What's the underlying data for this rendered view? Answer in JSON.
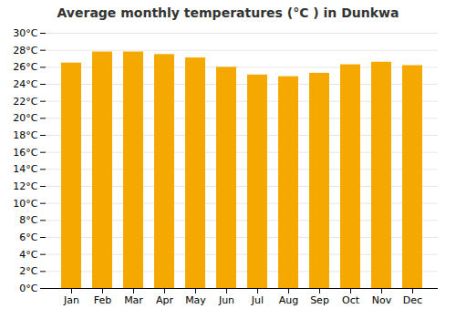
{
  "chart_data": {
    "type": "bar",
    "title": "Average monthly temperatures (°C ) in Dunkwa",
    "categories": [
      "Jan",
      "Feb",
      "Mar",
      "Apr",
      "May",
      "Jun",
      "Jul",
      "Aug",
      "Sep",
      "Oct",
      "Nov",
      "Dec"
    ],
    "values": [
      26.5,
      27.8,
      27.8,
      27.5,
      27.1,
      26.0,
      25.1,
      24.9,
      25.3,
      26.3,
      26.6,
      26.2
    ],
    "color": "#F5A800",
    "ylim": [
      0,
      30
    ],
    "yticks": [
      {
        "value": 0,
        "label": "0°C"
      },
      {
        "value": 2,
        "label": "2°C"
      },
      {
        "value": 4,
        "label": "4°C"
      },
      {
        "value": 6,
        "label": "6°C"
      },
      {
        "value": 8,
        "label": "8°C"
      },
      {
        "value": 10,
        "label": "10°C"
      },
      {
        "value": 12,
        "label": "12°C"
      },
      {
        "value": 14,
        "label": "14°C"
      },
      {
        "value": 16,
        "label": "16°C"
      },
      {
        "value": 18,
        "label": "18°C"
      },
      {
        "value": 20,
        "label": "20°C"
      },
      {
        "value": 22,
        "label": "22°C"
      },
      {
        "value": 24,
        "label": "24°C"
      },
      {
        "value": 26,
        "label": "26°C"
      },
      {
        "value": 28,
        "label": "28°C"
      },
      {
        "value": 30,
        "label": "30°C"
      }
    ],
    "grid": true
  }
}
